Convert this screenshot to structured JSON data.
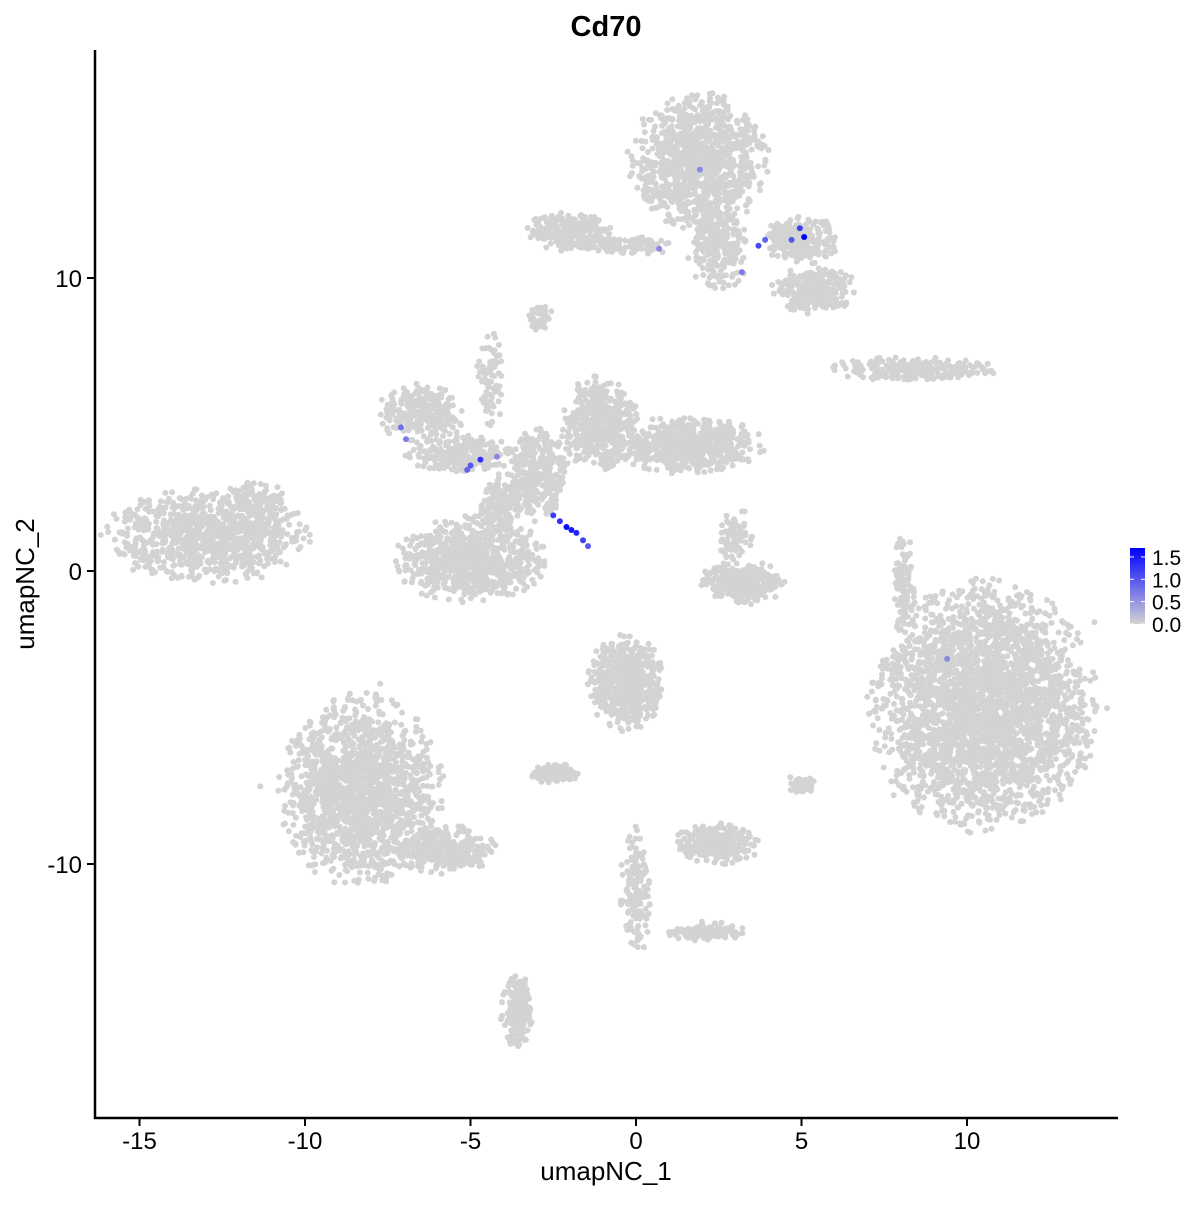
{
  "chart_data": {
    "type": "scatter",
    "title": "Cd70",
    "xlabel": "umapNC_1",
    "ylabel": "umapNC_2",
    "xlim": [
      -16.3,
      14.6
    ],
    "ylim": [
      -18.7,
      17.8
    ],
    "xticks": [
      -15,
      -10,
      -5,
      0,
      5,
      10
    ],
    "yticks": [
      -10,
      0,
      10
    ],
    "xtick_labels": [
      "-15",
      "-10",
      "-5",
      "0",
      "5",
      "10"
    ],
    "ytick_labels": [
      "-10",
      "0",
      "10"
    ],
    "grid": false,
    "legend": {
      "placement": "right",
      "type": "colorbar",
      "ticks": [
        0.0,
        0.5,
        1.0,
        1.5
      ],
      "tick_labels": [
        "0.0",
        "0.5",
        "1.0",
        "1.5"
      ],
      "range": [
        0,
        1.7
      ],
      "low_color": "#D3D3D3",
      "high_color": "#0000FF"
    },
    "background_point_color": "#D3D3D3",
    "clusters_approx": [
      {
        "cx": -13.0,
        "cy": 1.2,
        "sx": 1.9,
        "sy": 1.0,
        "n": 900
      },
      {
        "cx": -11.5,
        "cy": 2.4,
        "sx": 0.6,
        "sy": 0.4,
        "n": 120
      },
      {
        "cx": 1.9,
        "cy": 14.0,
        "sx": 1.3,
        "sy": 1.4,
        "n": 1100
      },
      {
        "cx": 2.5,
        "cy": 11.2,
        "sx": 0.6,
        "sy": 1.0,
        "n": 250
      },
      {
        "cx": 5.0,
        "cy": 11.3,
        "sx": 0.7,
        "sy": 0.5,
        "n": 250
      },
      {
        "cx": 5.4,
        "cy": 9.6,
        "sx": 0.8,
        "sy": 0.5,
        "n": 300
      },
      {
        "cx": -2.0,
        "cy": 11.6,
        "sx": 0.8,
        "sy": 0.4,
        "n": 250
      },
      {
        "cx": -0.3,
        "cy": 11.1,
        "sx": 0.9,
        "sy": 0.2,
        "n": 100
      },
      {
        "cx": -6.5,
        "cy": 5.4,
        "sx": 0.8,
        "sy": 0.6,
        "n": 300
      },
      {
        "cx": -5.3,
        "cy": 4.0,
        "sx": 1.0,
        "sy": 0.4,
        "n": 250
      },
      {
        "cx": -3.0,
        "cy": 3.2,
        "sx": 0.6,
        "sy": 1.0,
        "n": 350
      },
      {
        "cx": -1.1,
        "cy": 5.0,
        "sx": 0.7,
        "sy": 1.0,
        "n": 500
      },
      {
        "cx": 1.6,
        "cy": 4.3,
        "sx": 1.4,
        "sy": 0.6,
        "n": 600
      },
      {
        "cx": -5.0,
        "cy": 0.4,
        "sx": 1.4,
        "sy": 0.9,
        "n": 800
      },
      {
        "cx": -4.1,
        "cy": 2.2,
        "sx": 0.4,
        "sy": 0.7,
        "n": 150
      },
      {
        "cx": -4.4,
        "cy": 6.5,
        "sx": 0.25,
        "sy": 1.0,
        "n": 80
      },
      {
        "cx": -2.9,
        "cy": 8.6,
        "sx": 0.25,
        "sy": 0.3,
        "n": 40
      },
      {
        "cx": 8.3,
        "cy": 6.9,
        "sx": 1.6,
        "sy": 0.25,
        "n": 250
      },
      {
        "cx": 3.2,
        "cy": -0.4,
        "sx": 0.8,
        "sy": 0.45,
        "n": 300
      },
      {
        "cx": 3.0,
        "cy": 1.2,
        "sx": 0.3,
        "sy": 0.6,
        "n": 80
      },
      {
        "cx": 10.5,
        "cy": -4.6,
        "sx": 2.1,
        "sy": 2.6,
        "n": 3000
      },
      {
        "cx": 8.1,
        "cy": -0.4,
        "sx": 0.2,
        "sy": 1.0,
        "n": 100
      },
      {
        "cx": -8.3,
        "cy": -7.5,
        "sx": 1.5,
        "sy": 2.0,
        "n": 1600
      },
      {
        "cx": -5.8,
        "cy": -9.5,
        "sx": 1.0,
        "sy": 0.5,
        "n": 300
      },
      {
        "cx": -3.6,
        "cy": -15.0,
        "sx": 0.3,
        "sy": 0.8,
        "n": 200
      },
      {
        "cx": -0.3,
        "cy": -3.8,
        "sx": 0.7,
        "sy": 1.0,
        "n": 600
      },
      {
        "cx": -2.5,
        "cy": -6.9,
        "sx": 0.5,
        "sy": 0.2,
        "n": 120
      },
      {
        "cx": 2.5,
        "cy": -9.3,
        "sx": 0.8,
        "sy": 0.45,
        "n": 300
      },
      {
        "cx": 0.0,
        "cy": -11.0,
        "sx": 0.3,
        "sy": 1.3,
        "n": 150
      },
      {
        "cx": 2.2,
        "cy": -12.3,
        "sx": 0.8,
        "sy": 0.2,
        "n": 120
      },
      {
        "cx": 5.0,
        "cy": -7.3,
        "sx": 0.3,
        "sy": 0.2,
        "n": 40
      }
    ],
    "expressed_points": [
      {
        "x": 1.93,
        "y": 13.7,
        "value": 0.6
      },
      {
        "x": 5.08,
        "y": 11.4,
        "value": 1.7
      },
      {
        "x": 4.95,
        "y": 11.7,
        "value": 1.2
      },
      {
        "x": 4.7,
        "y": 11.3,
        "value": 1.0
      },
      {
        "x": 3.9,
        "y": 11.3,
        "value": 0.9
      },
      {
        "x": 3.7,
        "y": 11.1,
        "value": 1.1
      },
      {
        "x": 3.2,
        "y": 10.2,
        "value": 0.7
      },
      {
        "x": 0.7,
        "y": 11.0,
        "value": 0.6
      },
      {
        "x": -2.5,
        "y": 1.9,
        "value": 1.2
      },
      {
        "x": -2.3,
        "y": 1.7,
        "value": 1.3
      },
      {
        "x": -2.1,
        "y": 1.5,
        "value": 1.6
      },
      {
        "x": -1.95,
        "y": 1.4,
        "value": 1.5
      },
      {
        "x": -1.8,
        "y": 1.3,
        "value": 1.4
      },
      {
        "x": -1.6,
        "y": 1.05,
        "value": 1.2
      },
      {
        "x": -1.45,
        "y": 0.85,
        "value": 1.0
      },
      {
        "x": -4.7,
        "y": 3.8,
        "value": 1.3
      },
      {
        "x": -5.0,
        "y": 3.6,
        "value": 1.0
      },
      {
        "x": -5.1,
        "y": 3.45,
        "value": 0.9
      },
      {
        "x": -7.1,
        "y": 4.9,
        "value": 0.8
      },
      {
        "x": -6.95,
        "y": 4.5,
        "value": 0.7
      },
      {
        "x": -4.2,
        "y": 3.9,
        "value": 0.6
      },
      {
        "x": 9.4,
        "y": -3.0,
        "value": 0.6
      }
    ]
  }
}
